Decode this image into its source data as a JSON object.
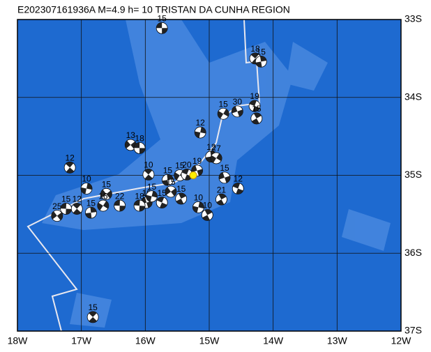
{
  "title": "E202307161936A  M=4.9 h= 10 TRISTAN DA CUNHA REGION",
  "map": {
    "xlim": [
      -18,
      -12
    ],
    "ylim": [
      -37,
      -33
    ],
    "xticks": [
      {
        "value": -18,
        "label": "18W"
      },
      {
        "value": -17,
        "label": "17W"
      },
      {
        "value": -16,
        "label": "16W"
      },
      {
        "value": -15,
        "label": "15W"
      },
      {
        "value": -14,
        "label": "14W"
      },
      {
        "value": -13,
        "label": "13W"
      },
      {
        "value": -12,
        "label": "12W"
      }
    ],
    "yticks": [
      {
        "value": -33,
        "label": "33S"
      },
      {
        "value": -34,
        "label": "34S"
      },
      {
        "value": -35,
        "label": "35S"
      },
      {
        "value": -36,
        "label": "36S"
      },
      {
        "value": -37,
        "label": "37S"
      }
    ],
    "main_event": {
      "lon": -15.25,
      "lat": -35.0
    },
    "events": [
      {
        "lon": -15.74,
        "lat": -33.11,
        "depth": "15"
      },
      {
        "lon": -14.28,
        "lat": -33.5,
        "depth": "18"
      },
      {
        "lon": -14.19,
        "lat": -33.54,
        "depth": "15"
      },
      {
        "lon": -14.78,
        "lat": -34.21,
        "depth": "15"
      },
      {
        "lon": -14.56,
        "lat": -34.18,
        "depth": "30"
      },
      {
        "lon": -14.29,
        "lat": -34.11,
        "depth": "19"
      },
      {
        "lon": -14.26,
        "lat": -34.27,
        "depth": "15"
      },
      {
        "lon": -15.14,
        "lat": -34.45,
        "depth": "12"
      },
      {
        "lon": -16.23,
        "lat": -34.61,
        "depth": "13"
      },
      {
        "lon": -16.09,
        "lat": -34.65,
        "depth": "18"
      },
      {
        "lon": -17.18,
        "lat": -34.9,
        "depth": "12"
      },
      {
        "lon": -14.97,
        "lat": -34.76,
        "depth": "12"
      },
      {
        "lon": -14.89,
        "lat": -34.78,
        "depth": "27"
      },
      {
        "lon": -14.76,
        "lat": -35.03,
        "depth": "15"
      },
      {
        "lon": -14.55,
        "lat": -35.17,
        "depth": "12"
      },
      {
        "lon": -14.81,
        "lat": -35.31,
        "depth": "21"
      },
      {
        "lon": -16.92,
        "lat": -35.17,
        "depth": "10"
      },
      {
        "lon": -16.61,
        "lat": -35.24,
        "depth": "15"
      },
      {
        "lon": -16.4,
        "lat": -35.39,
        "depth": "22"
      },
      {
        "lon": -15.95,
        "lat": -34.99,
        "depth": "10"
      },
      {
        "lon": -15.65,
        "lat": -35.06,
        "depth": "15"
      },
      {
        "lon": -15.46,
        "lat": -35.0,
        "depth": "15"
      },
      {
        "lon": -15.19,
        "lat": -34.94,
        "depth": "19"
      },
      {
        "lon": -15.35,
        "lat": -34.99,
        "depth": "20"
      },
      {
        "lon": -15.03,
        "lat": -35.51,
        "depth": "10"
      },
      {
        "lon": -15.17,
        "lat": -35.41,
        "depth": "10"
      },
      {
        "lon": -17.38,
        "lat": -35.52,
        "depth": "25"
      },
      {
        "lon": -17.24,
        "lat": -35.43,
        "depth": "15"
      },
      {
        "lon": -17.07,
        "lat": -35.43,
        "depth": "12"
      },
      {
        "lon": -16.85,
        "lat": -35.48,
        "depth": "15"
      },
      {
        "lon": -16.66,
        "lat": -35.39,
        "depth": "16"
      },
      {
        "lon": -15.98,
        "lat": -35.35,
        "depth": "10"
      },
      {
        "lon": -15.74,
        "lat": -35.35,
        "depth": "15"
      },
      {
        "lon": -15.44,
        "lat": -35.3,
        "depth": "15"
      },
      {
        "lon": -15.9,
        "lat": -35.27,
        "depth": "15"
      },
      {
        "lon": -15.6,
        "lat": -35.21,
        "depth": "15"
      },
      {
        "lon": -16.09,
        "lat": -35.39,
        "depth": "18"
      },
      {
        "lon": -16.82,
        "lat": -36.82,
        "depth": "15"
      }
    ]
  }
}
